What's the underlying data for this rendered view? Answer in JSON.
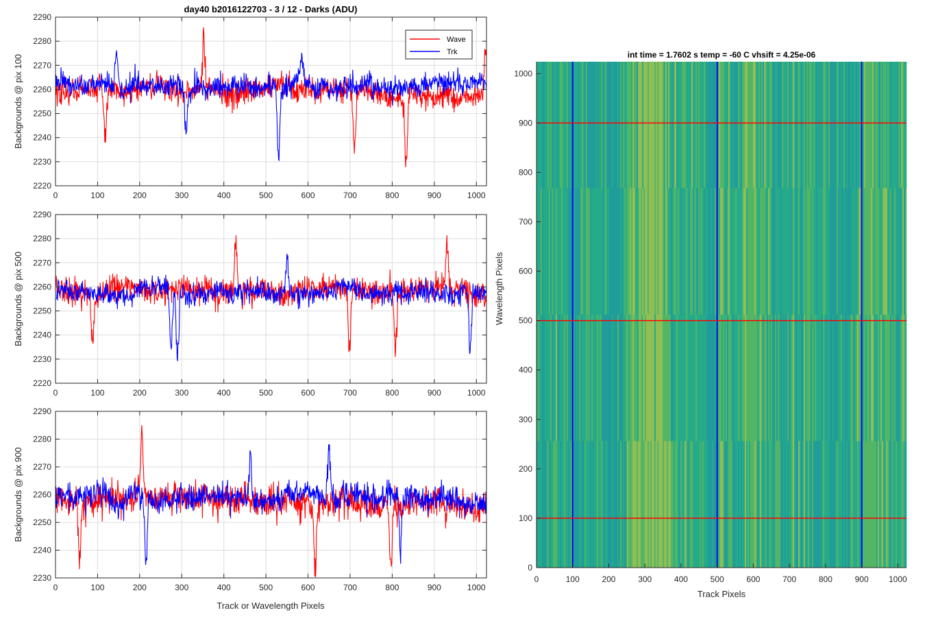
{
  "figure": {
    "title": "day40 b2016122703 - 3 / 12 - Darks (ADU)",
    "xlabel": "Track or Wavelength Pixels"
  },
  "legend": {
    "items": [
      {
        "name": "Wave",
        "color": "#ff0000"
      },
      {
        "name": "Trk",
        "color": "#0000ff"
      }
    ],
    "placement": "top-right"
  },
  "chart_data": [
    {
      "type": "line",
      "ylabel": "Backgrounds @ pix 100",
      "xlim": [
        0,
        1024
      ],
      "ylim": [
        2220,
        2290
      ],
      "xticks": [
        0,
        100,
        200,
        300,
        400,
        500,
        600,
        700,
        800,
        900,
        1000
      ],
      "yticks": [
        2220,
        2230,
        2240,
        2250,
        2260,
        2270,
        2280,
        2290
      ],
      "grid": true,
      "series": [
        {
          "name": "Wave",
          "color": "#ff0000",
          "mean": 2259,
          "noise": 6.5,
          "features": [
            {
              "x": 352,
              "y": 2283
            },
            {
              "x": 833,
              "y": 2228
            },
            {
              "x": 1022,
              "y": 2282
            },
            {
              "x": 118,
              "y": 2236
            },
            {
              "x": 710,
              "y": 2231
            }
          ]
        },
        {
          "name": "Trk",
          "color": "#0000ff",
          "mean": 2262,
          "noise": 6,
          "features": [
            {
              "x": 145,
              "y": 2282
            },
            {
              "x": 530,
              "y": 2229
            },
            {
              "x": 585,
              "y": 2272
            },
            {
              "x": 310,
              "y": 2238
            }
          ]
        }
      ]
    },
    {
      "type": "line",
      "ylabel": "Backgrounds @ pix 500",
      "xlim": [
        0,
        1024
      ],
      "ylim": [
        2220,
        2290
      ],
      "xticks": [
        0,
        100,
        200,
        300,
        400,
        500,
        600,
        700,
        800,
        900,
        1000
      ],
      "yticks": [
        2220,
        2230,
        2240,
        2250,
        2260,
        2270,
        2280,
        2290
      ],
      "grid": true,
      "series": [
        {
          "name": "Wave",
          "color": "#ff0000",
          "mean": 2258,
          "noise": 7,
          "features": [
            {
              "x": 428,
              "y": 2283
            },
            {
              "x": 930,
              "y": 2282
            },
            {
              "x": 698,
              "y": 2227
            },
            {
              "x": 808,
              "y": 2228
            },
            {
              "x": 88,
              "y": 2235
            }
          ]
        },
        {
          "name": "Trk",
          "color": "#0000ff",
          "mean": 2258,
          "noise": 5.5,
          "features": [
            {
              "x": 290,
              "y": 2227
            },
            {
              "x": 275,
              "y": 2230
            },
            {
              "x": 985,
              "y": 2230
            },
            {
              "x": 550,
              "y": 2273
            }
          ]
        }
      ]
    },
    {
      "type": "line",
      "ylabel": "Backgrounds @ pix 900",
      "xlim": [
        0,
        1024
      ],
      "ylim": [
        2230,
        2290
      ],
      "xticks": [
        0,
        100,
        200,
        300,
        400,
        500,
        600,
        700,
        800,
        900,
        1000
      ],
      "yticks": [
        2230,
        2240,
        2250,
        2260,
        2270,
        2280,
        2290
      ],
      "grid": true,
      "series": [
        {
          "name": "Wave",
          "color": "#ff0000",
          "mean": 2258,
          "noise": 7,
          "features": [
            {
              "x": 205,
              "y": 2285
            },
            {
              "x": 797,
              "y": 2231
            },
            {
              "x": 617,
              "y": 2232
            },
            {
              "x": 57,
              "y": 2236
            }
          ]
        },
        {
          "name": "Trk",
          "color": "#0000ff",
          "mean": 2259,
          "noise": 6,
          "features": [
            {
              "x": 215,
              "y": 2235
            },
            {
              "x": 650,
              "y": 2278
            },
            {
              "x": 463,
              "y": 2277
            },
            {
              "x": 820,
              "y": 2237
            }
          ]
        }
      ]
    },
    {
      "type": "heatmap",
      "title": "int time = 1.7602 s    temp = -60 C    vhsift = 4.25e-06",
      "xlabel": "Track Pixels",
      "ylabel": "Wavelength Pixels",
      "xlim": [
        0,
        1024
      ],
      "ylim": [
        0,
        1024
      ],
      "xticks": [
        0,
        100,
        200,
        300,
        400,
        500,
        600,
        700,
        800,
        900,
        1000
      ],
      "yticks": [
        0,
        100,
        200,
        300,
        400,
        500,
        600,
        700,
        800,
        900,
        1000
      ],
      "colormap": [
        "#1f9a9e",
        "#27ab8a",
        "#5cb85e",
        "#a9c24a"
      ],
      "vertical_lines": {
        "color": "#0000ff",
        "x": [
          100,
          500,
          900
        ]
      },
      "horizontal_lines": {
        "color": "#ff0000",
        "y": [
          100,
          500,
          900
        ]
      }
    }
  ]
}
